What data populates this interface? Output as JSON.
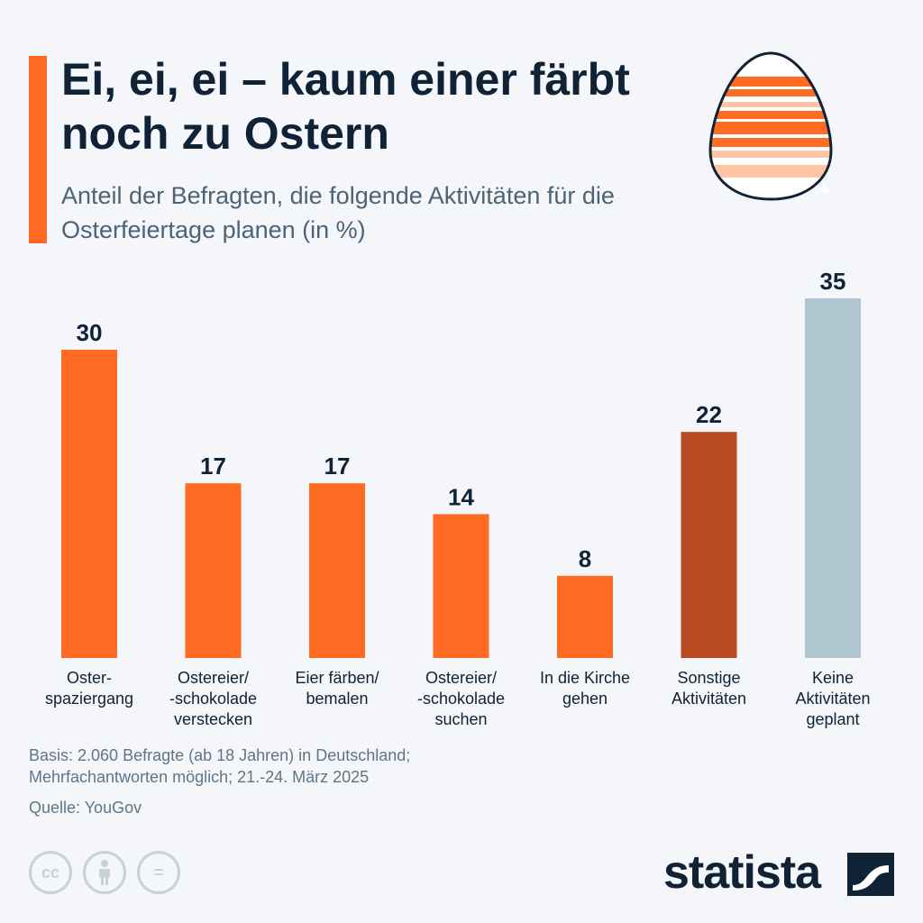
{
  "header": {
    "title": "Ei, ei, ei – kaum einer färbt noch zu Ostern",
    "subtitle": "Anteil der Befragten, die folgende Aktivitäten für die Osterfeiertage planen (in %)"
  },
  "colors": {
    "accent": "#ff6b23",
    "dark_orange": "#b94a22",
    "grey_blue": "#afc5cf",
    "text_dark": "#0f2236"
  },
  "chart_data": {
    "type": "bar",
    "title": "",
    "xlabel": "",
    "ylabel": "",
    "ylim": [
      0,
      35
    ],
    "grid": false,
    "categories": [
      [
        "Oster-",
        "spaziergang"
      ],
      [
        "Ostereier/",
        "-schokolade",
        "verstecken"
      ],
      [
        "Eier färben/",
        "bemalen"
      ],
      [
        "Ostereier/",
        "-schokolade",
        "suchen"
      ],
      [
        "In die Kirche",
        "gehen"
      ],
      [
        "Sonstige",
        "Aktivitäten"
      ],
      [
        "Keine",
        "Aktivitäten",
        "geplant"
      ]
    ],
    "values": [
      30,
      17,
      17,
      14,
      8,
      22,
      35
    ],
    "bar_colors": [
      "#ff6b23",
      "#ff6b23",
      "#ff6b23",
      "#ff6b23",
      "#ff6b23",
      "#b94a22",
      "#afc5cf"
    ]
  },
  "footer": {
    "note_line1": "Basis: 2.060 Befragte (ab 18 Jahren) in Deutschland;",
    "note_line2": "Mehrfachantworten möglich; 21.-24. März 2025",
    "source": "Quelle: YouGov",
    "license_icons": [
      "cc",
      "person-icon",
      "="
    ],
    "brand": "statista"
  }
}
